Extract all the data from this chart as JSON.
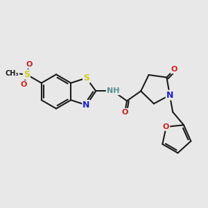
{
  "bg_color": "#e8e8e8",
  "bond_color": "#1a1a1a",
  "bond_width": 1.5,
  "colors": {
    "C": "#1a1a1a",
    "N": "#2020cc",
    "O": "#cc2020",
    "S": "#cccc20",
    "H": "#5a9090"
  },
  "fig_size": [
    3.0,
    3.0
  ],
  "dpi": 100
}
